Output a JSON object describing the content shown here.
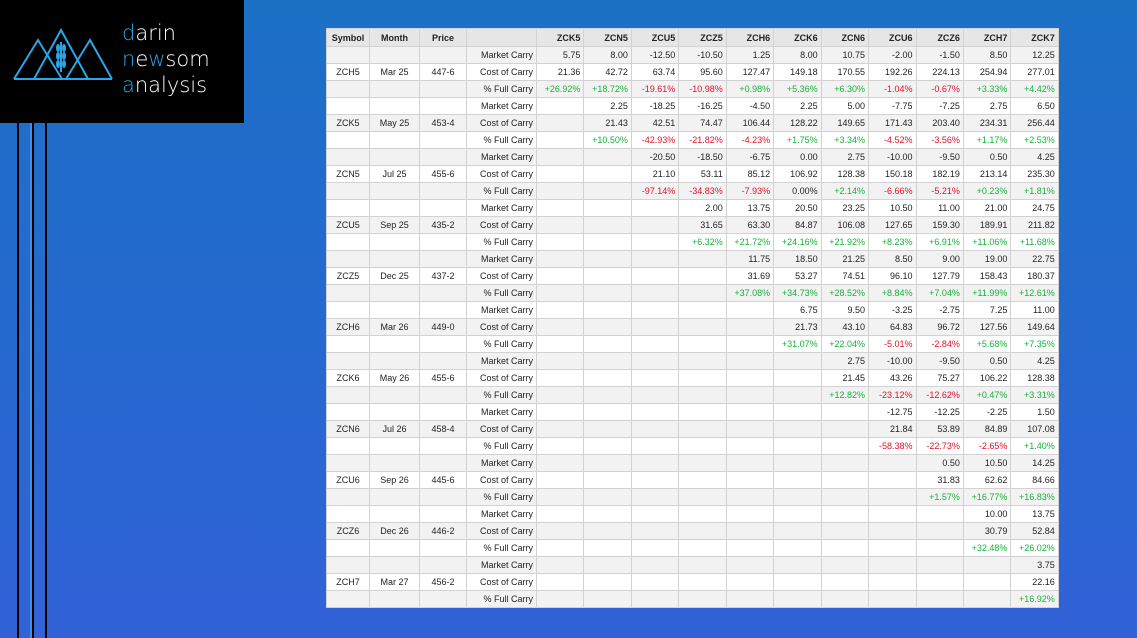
{
  "logo": {
    "line1_hl": "d",
    "line1": "arin",
    "line2_hl1": "n",
    "line2_a": "e",
    "line2_hl2": "w",
    "line2_b": "som",
    "line3_hl": "a",
    "line3": "nalysis"
  },
  "colors": {
    "positive": "#16b23a",
    "negative": "#e3102a",
    "logo_accent": "#2aa6e6"
  },
  "table": {
    "headers": [
      "Symbol",
      "Month",
      "Price",
      ""
    ],
    "columns": [
      "ZCK5",
      "ZCN5",
      "ZCU5",
      "ZCZ5",
      "ZCH6",
      "ZCK6",
      "ZCN6",
      "ZCU6",
      "ZCZ6",
      "ZCH7",
      "ZCK7"
    ],
    "row_labels": {
      "market": "Market Carry",
      "cost": "Cost of Carry",
      "full": "% Full Carry"
    },
    "groups": [
      {
        "symbol": "ZCH5",
        "month": "Mar 25",
        "price": "447-6",
        "market": [
          "5.75",
          "8.00",
          "-12.50",
          "-10.50",
          "1.25",
          "8.00",
          "10.75",
          "-2.00",
          "-1.50",
          "8.50",
          "12.25"
        ],
        "cost": [
          "21.36",
          "42.72",
          "63.74",
          "95.60",
          "127.47",
          "149.18",
          "170.55",
          "192.26",
          "224.13",
          "254.94",
          "277.01"
        ],
        "full": [
          "+26.92%",
          "+18.72%",
          "-19.61%",
          "-10.98%",
          "+0.98%",
          "+5.36%",
          "+6.30%",
          "-1.04%",
          "-0.67%",
          "+3.33%",
          "+4.42%"
        ]
      },
      {
        "symbol": "ZCK5",
        "month": "May 25",
        "price": "453-4",
        "market": [
          "2.25",
          "-18.25",
          "-16.25",
          "-4.50",
          "2.25",
          "5.00",
          "-7.75",
          "-7.25",
          "2.75",
          "6.50"
        ],
        "cost": [
          "21.43",
          "42.51",
          "74.47",
          "106.44",
          "128.22",
          "149.65",
          "171.43",
          "203.40",
          "234.31",
          "256.44"
        ],
        "full": [
          "+10.50%",
          "-42.93%",
          "-21.82%",
          "-4.23%",
          "+1.75%",
          "+3.34%",
          "-4.52%",
          "-3.56%",
          "+1.17%",
          "+2.53%"
        ]
      },
      {
        "symbol": "ZCN5",
        "month": "Jul 25",
        "price": "455-6",
        "market": [
          "-20.50",
          "-18.50",
          "-6.75",
          "0.00",
          "2.75",
          "-10.00",
          "-9.50",
          "0.50",
          "4.25"
        ],
        "cost": [
          "21.10",
          "53.11",
          "85.12",
          "106.92",
          "128.38",
          "150.18",
          "182.19",
          "213.14",
          "235.30"
        ],
        "full": [
          "-97.14%",
          "-34.83%",
          "-7.93%",
          "0.00%",
          "+2.14%",
          "-6.66%",
          "-5.21%",
          "+0.23%",
          "+1.81%"
        ]
      },
      {
        "symbol": "ZCU5",
        "month": "Sep 25",
        "price": "435-2",
        "market": [
          "2.00",
          "13.75",
          "20.50",
          "23.25",
          "10.50",
          "11.00",
          "21.00",
          "24.75"
        ],
        "cost": [
          "31.65",
          "63.30",
          "84.87",
          "106.08",
          "127.65",
          "159.30",
          "189.91",
          "211.82"
        ],
        "full": [
          "+6.32%",
          "+21.72%",
          "+24.16%",
          "+21.92%",
          "+8.23%",
          "+6.91%",
          "+11.06%",
          "+11.68%"
        ]
      },
      {
        "symbol": "ZCZ5",
        "month": "Dec 25",
        "price": "437-2",
        "market": [
          "11.75",
          "18.50",
          "21.25",
          "8.50",
          "9.00",
          "19.00",
          "22.75"
        ],
        "cost": [
          "31.69",
          "53.27",
          "74.51",
          "96.10",
          "127.79",
          "158.43",
          "180.37"
        ],
        "full": [
          "+37.08%",
          "+34.73%",
          "+28.52%",
          "+8.84%",
          "+7.04%",
          "+11.99%",
          "+12.61%"
        ]
      },
      {
        "symbol": "ZCH6",
        "month": "Mar 26",
        "price": "449-0",
        "market": [
          "6.75",
          "9.50",
          "-3.25",
          "-2.75",
          "7.25",
          "11.00"
        ],
        "cost": [
          "21.73",
          "43.10",
          "64.83",
          "96.72",
          "127.56",
          "149.64"
        ],
        "full": [
          "+31.07%",
          "+22.04%",
          "-5.01%",
          "-2.84%",
          "+5.68%",
          "+7.35%"
        ]
      },
      {
        "symbol": "ZCK6",
        "month": "May 26",
        "price": "455-6",
        "market": [
          "2.75",
          "-10.00",
          "-9.50",
          "0.50",
          "4.25"
        ],
        "cost": [
          "21.45",
          "43.26",
          "75.27",
          "106.22",
          "128.38"
        ],
        "full": [
          "+12.82%",
          "-23.12%",
          "-12.62%",
          "+0.47%",
          "+3.31%"
        ]
      },
      {
        "symbol": "ZCN6",
        "month": "Jul 26",
        "price": "458-4",
        "market": [
          "-12.75",
          "-12.25",
          "-2.25",
          "1.50"
        ],
        "cost": [
          "21.84",
          "53.89",
          "84.89",
          "107.08"
        ],
        "full": [
          "-58.38%",
          "-22.73%",
          "-2.65%",
          "+1.40%"
        ]
      },
      {
        "symbol": "ZCU6",
        "month": "Sep 26",
        "price": "445-6",
        "market": [
          "0.50",
          "10.50",
          "14.25"
        ],
        "cost": [
          "31.83",
          "62.62",
          "84.66"
        ],
        "full": [
          "+1.57%",
          "+16.77%",
          "+16.83%"
        ]
      },
      {
        "symbol": "ZCZ6",
        "month": "Dec 26",
        "price": "446-2",
        "market": [
          "10.00",
          "13.75"
        ],
        "cost": [
          "30.79",
          "52.84"
        ],
        "full": [
          "+32.48%",
          "+26.02%"
        ]
      },
      {
        "symbol": "ZCH7",
        "month": "Mar 27",
        "price": "456-2",
        "market": [
          "3.75"
        ],
        "cost": [
          "22.16"
        ],
        "full": [
          "+16.92%"
        ]
      }
    ]
  }
}
